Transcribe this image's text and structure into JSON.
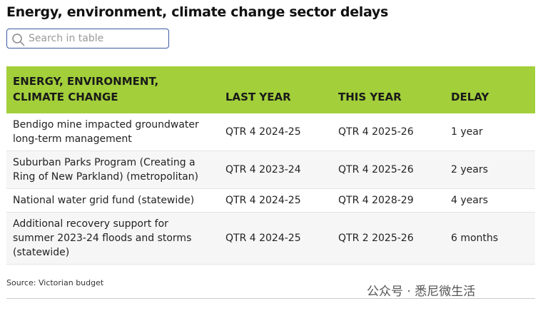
{
  "header": {
    "title": "Energy, environment, climate change sector delays",
    "search_placeholder": "Search in table"
  },
  "table": {
    "columns": [
      "ENERGY, ENVIRONMENT, CLIMATE CHANGE",
      "LAST YEAR",
      "THIS YEAR",
      "DELAY"
    ],
    "rows": [
      [
        "Bendigo mine impacted groundwater long-term management",
        "QTR 4 2024-25",
        "QTR 4 2025-26",
        "1 year"
      ],
      [
        "Suburban Parks Program (Creating a Ring of New Parkland) (metropolitan)",
        "QTR 4 2023-24",
        "QTR 4 2025-26",
        "2 years"
      ],
      [
        "National water grid fund (statewide)",
        "QTR 4 2024-25",
        "QTR 4 2028-29",
        "4 years"
      ],
      [
        "Additional recovery support for summer 2023-24 floods and storms (statewide)",
        "QTR 4 2024-25",
        "QTR 2 2025-26",
        "6 months"
      ]
    ]
  },
  "footer": {
    "source": "Source: Victorian budget",
    "watermark": "公众号 · 悉尼微生活"
  }
}
